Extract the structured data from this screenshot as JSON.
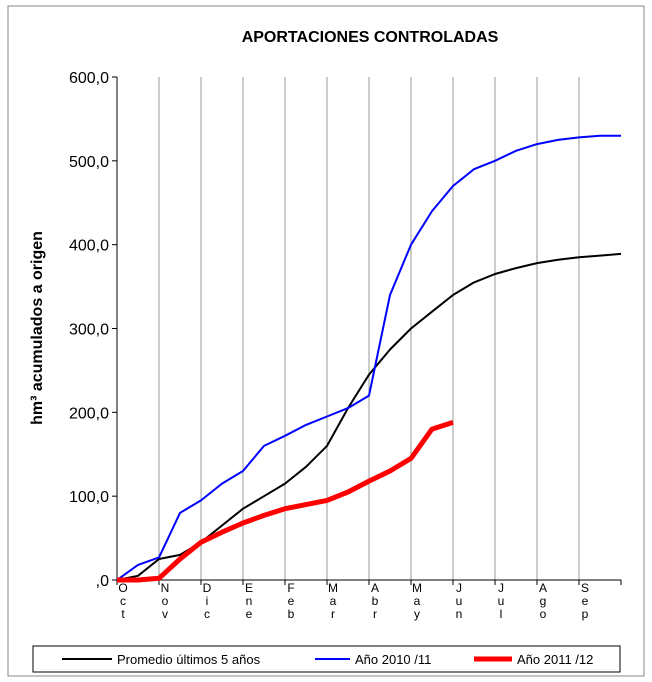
{
  "chart_data": {
    "type": "line",
    "title": "APORTACIONES CONTROLADAS",
    "y_label": "hm³ acumulados a origen",
    "categories": [
      "Oct",
      null,
      "Nov",
      null,
      "Dic",
      null,
      "Ene",
      null,
      "Feb",
      null,
      "Mar",
      null,
      "Abr",
      null,
      "May",
      null,
      "Jun",
      null,
      "Jul",
      null,
      "Ago",
      null,
      "Sep",
      null,
      null
    ],
    "series": [
      {
        "name": "Promedio últimos 5 años",
        "color": "#000000",
        "width": 2,
        "values": [
          0,
          5,
          25,
          30,
          45,
          65,
          85,
          100,
          115,
          135,
          160,
          205,
          245,
          275,
          300,
          320,
          340,
          355,
          365,
          372,
          378,
          382,
          385,
          387,
          389
        ]
      },
      {
        "name": "Año 2010 /11",
        "color": "#0000ff",
        "width": 2,
        "values": [
          0,
          18,
          27,
          80,
          95,
          115,
          130,
          160,
          172,
          185,
          195,
          205,
          220,
          340,
          400,
          440,
          470,
          490,
          500,
          512,
          520,
          525,
          528,
          530,
          530
        ]
      },
      {
        "name": "Año 2011 /12",
        "color": "#ff0000",
        "width": 5,
        "values": [
          0,
          0,
          2,
          25,
          45,
          57,
          68,
          77,
          85,
          90,
          95,
          105,
          118,
          130,
          145,
          180,
          188,
          null,
          null,
          null,
          null,
          null,
          null,
          null,
          null
        ]
      }
    ],
    "ylim": [
      0,
      600
    ],
    "yticks": [
      {
        "value": 0,
        "label": ",0"
      },
      {
        "value": 100,
        "label": "100,0"
      },
      {
        "value": 200,
        "label": "200,0"
      },
      {
        "value": 300,
        "label": "300,0"
      },
      {
        "value": 400,
        "label": "400,0"
      },
      {
        "value": 500,
        "label": "500,0"
      },
      {
        "value": 600,
        "label": "600,0"
      }
    ],
    "grid": "x",
    "legend": "bottom"
  }
}
